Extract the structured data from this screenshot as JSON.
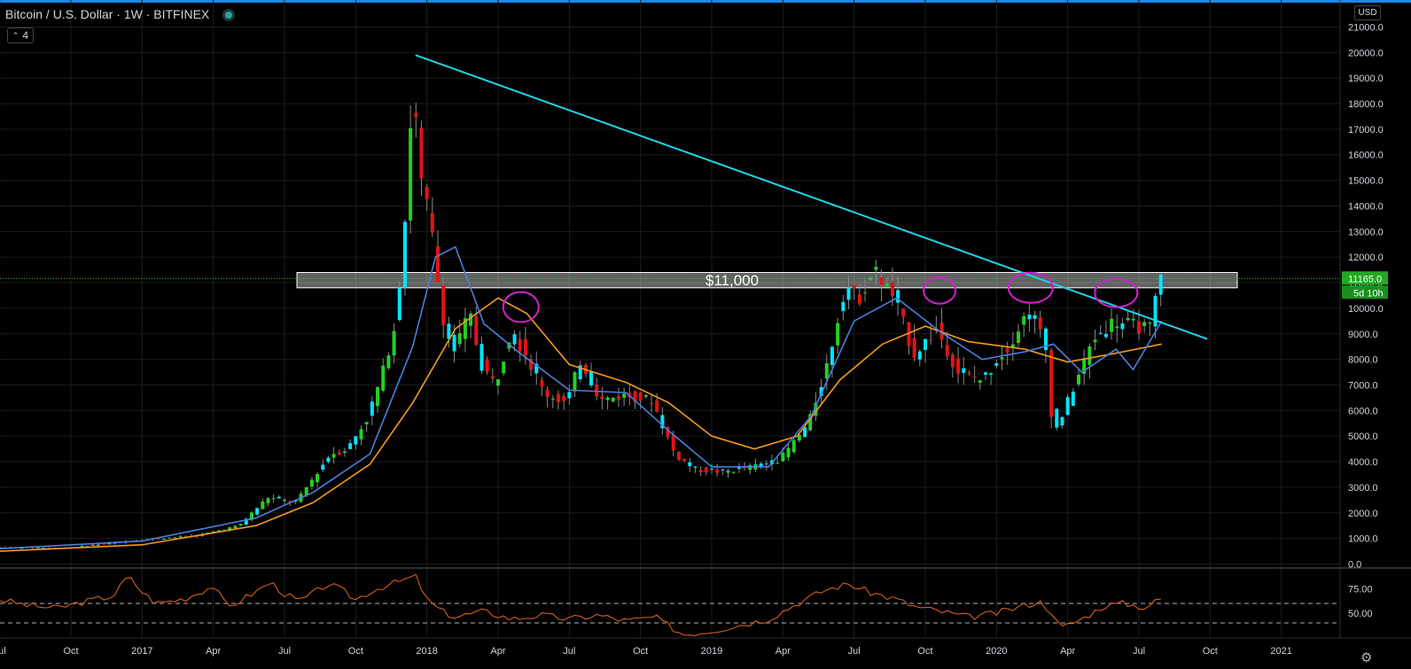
{
  "header": {
    "title": "Bitcoin / U.S. Dollar · 1W · BITFINEX",
    "indicators_label": "4",
    "currency": "USD",
    "price_tag": "11165.0",
    "countdown": "5d 10h"
  },
  "annotation": {
    "zone_label": "$11,000"
  },
  "colors": {
    "up": "#22d122",
    "down": "#e21414",
    "up_hollow": "#00e5ff",
    "ma_fast": "#4a7fe0",
    "ma_slow": "#f59a1f",
    "trendline": "#22d3e6",
    "circle": "#d020d0",
    "rsi": "#e8661e",
    "grid": "#1c1c1c"
  },
  "chart_data": [
    {
      "type": "candlestick",
      "timeframe": "1W",
      "y_ticks": [
        "21000.0",
        "20000.0",
        "19000.0",
        "18000.0",
        "17000.0",
        "16000.0",
        "15000.0",
        "14000.0",
        "13000.0",
        "12000.0",
        "11000.0",
        "10000.0",
        "9000.0",
        "8000.0",
        "7000.0",
        "6000.0",
        "5000.0",
        "4000.0",
        "3000.0",
        "2000.0",
        "1000.0",
        "0.0"
      ],
      "ylim": [
        0,
        21000
      ],
      "x_ticks": [
        "Jul",
        "Oct",
        "2017",
        "Apr",
        "Jul",
        "Oct",
        "2018",
        "Apr",
        "Jul",
        "Oct",
        "2019",
        "Apr",
        "Jul",
        "Oct",
        "2020",
        "Apr",
        "Jul",
        "Oct",
        "2021"
      ],
      "x_tick_months": [
        2016.5,
        2016.75,
        2017,
        2017.25,
        2017.5,
        2017.75,
        2018,
        2018.25,
        2018.5,
        2018.75,
        2019,
        2019.25,
        2019.5,
        2019.75,
        2020,
        2020.25,
        2020.5,
        2020.75,
        2021
      ],
      "price_path": [
        [
          2016.5,
          650
        ],
        [
          2016.75,
          630
        ],
        [
          2017.0,
          950
        ],
        [
          2017.2,
          1100
        ],
        [
          2017.35,
          1500
        ],
        [
          2017.45,
          2600
        ],
        [
          2017.55,
          2400
        ],
        [
          2017.6,
          3200
        ],
        [
          2017.67,
          4300
        ],
        [
          2017.73,
          4500
        ],
        [
          2017.8,
          5700
        ],
        [
          2017.85,
          7300
        ],
        [
          2017.9,
          9500
        ],
        [
          2017.93,
          13000
        ],
        [
          2017.96,
          18800
        ],
        [
          2017.99,
          14800
        ],
        [
          2018.02,
          13500
        ],
        [
          2018.06,
          10000
        ],
        [
          2018.1,
          8200
        ],
        [
          2018.16,
          9800
        ],
        [
          2018.2,
          7800
        ],
        [
          2018.25,
          7000
        ],
        [
          2018.3,
          9000
        ],
        [
          2018.35,
          8400
        ],
        [
          2018.42,
          6700
        ],
        [
          2018.5,
          6300
        ],
        [
          2018.55,
          8000
        ],
        [
          2018.62,
          6400
        ],
        [
          2018.7,
          6600
        ],
        [
          2018.8,
          6400
        ],
        [
          2018.88,
          4300
        ],
        [
          2018.95,
          3700
        ],
        [
          2019.05,
          3600
        ],
        [
          2019.15,
          3800
        ],
        [
          2019.25,
          4100
        ],
        [
          2019.35,
          5500
        ],
        [
          2019.42,
          8000
        ],
        [
          2019.48,
          11000
        ],
        [
          2019.52,
          10300
        ],
        [
          2019.58,
          11500
        ],
        [
          2019.65,
          10400
        ],
        [
          2019.72,
          8200
        ],
        [
          2019.8,
          9200
        ],
        [
          2019.88,
          7400
        ],
        [
          2019.96,
          7200
        ],
        [
          2020.05,
          8500
        ],
        [
          2020.12,
          9900
        ],
        [
          2020.18,
          8700
        ],
        [
          2020.21,
          5000
        ],
        [
          2020.28,
          6900
        ],
        [
          2020.35,
          8800
        ],
        [
          2020.42,
          9500
        ],
        [
          2020.5,
          9300
        ],
        [
          2020.55,
          9200
        ],
        [
          2020.58,
          11165
        ]
      ],
      "ma_fast_path": [
        [
          2016.5,
          600
        ],
        [
          2017.0,
          900
        ],
        [
          2017.4,
          1800
        ],
        [
          2017.6,
          2800
        ],
        [
          2017.8,
          4300
        ],
        [
          2017.95,
          8500
        ],
        [
          2018.03,
          12000
        ],
        [
          2018.1,
          12400
        ],
        [
          2018.2,
          9400
        ],
        [
          2018.32,
          8300
        ],
        [
          2018.5,
          6800
        ],
        [
          2018.7,
          6700
        ],
        [
          2018.85,
          5200
        ],
        [
          2019.0,
          3800
        ],
        [
          2019.2,
          3800
        ],
        [
          2019.35,
          5800
        ],
        [
          2019.5,
          9500
        ],
        [
          2019.65,
          10400
        ],
        [
          2019.8,
          9100
        ],
        [
          2019.95,
          8000
        ],
        [
          2020.1,
          8300
        ],
        [
          2020.2,
          8600
        ],
        [
          2020.3,
          7500
        ],
        [
          2020.42,
          8400
        ],
        [
          2020.48,
          7600
        ],
        [
          2020.58,
          9500
        ]
      ],
      "ma_slow_path": [
        [
          2016.5,
          500
        ],
        [
          2017.0,
          750
        ],
        [
          2017.4,
          1500
        ],
        [
          2017.6,
          2400
        ],
        [
          2017.8,
          3900
        ],
        [
          2017.95,
          6300
        ],
        [
          2018.1,
          9200
        ],
        [
          2018.25,
          10400
        ],
        [
          2018.35,
          9800
        ],
        [
          2018.5,
          7800
        ],
        [
          2018.7,
          7100
        ],
        [
          2018.85,
          6300
        ],
        [
          2019.0,
          5000
        ],
        [
          2019.15,
          4500
        ],
        [
          2019.3,
          5000
        ],
        [
          2019.45,
          7200
        ],
        [
          2019.6,
          8600
        ],
        [
          2019.75,
          9300
        ],
        [
          2019.9,
          8700
        ],
        [
          2020.1,
          8400
        ],
        [
          2020.25,
          7900
        ],
        [
          2020.4,
          8200
        ],
        [
          2020.58,
          8600
        ]
      ],
      "trendline": [
        [
          2017.96,
          19900
        ],
        [
          2020.74,
          8800
        ]
      ],
      "zone": [
        10800,
        11400
      ],
      "last_price": 11165.0
    },
    {
      "type": "line",
      "series_name": "RSI",
      "y_ticks": [
        "75.00",
        "50.00"
      ],
      "ylim": [
        25,
        100
      ],
      "bands": [
        60,
        40
      ],
      "values": [
        [
          2016.5,
          64
        ],
        [
          2016.6,
          58
        ],
        [
          2016.7,
          55
        ],
        [
          2016.8,
          62
        ],
        [
          2016.9,
          68
        ],
        [
          2016.95,
          88
        ],
        [
          2017.0,
          72
        ],
        [
          2017.05,
          60
        ],
        [
          2017.15,
          65
        ],
        [
          2017.25,
          78
        ],
        [
          2017.3,
          56
        ],
        [
          2017.4,
          72
        ],
        [
          2017.45,
          82
        ],
        [
          2017.5,
          70
        ],
        [
          2017.55,
          62
        ],
        [
          2017.6,
          70
        ],
        [
          2017.65,
          80
        ],
        [
          2017.7,
          74
        ],
        [
          2017.75,
          64
        ],
        [
          2017.8,
          72
        ],
        [
          2017.85,
          78
        ],
        [
          2017.9,
          82
        ],
        [
          2017.96,
          88
        ],
        [
          2018.0,
          64
        ],
        [
          2018.05,
          52
        ],
        [
          2018.1,
          46
        ],
        [
          2018.2,
          52
        ],
        [
          2018.3,
          44
        ],
        [
          2018.4,
          48
        ],
        [
          2018.5,
          44
        ],
        [
          2018.6,
          48
        ],
        [
          2018.7,
          42
        ],
        [
          2018.8,
          46
        ],
        [
          2018.9,
          28
        ],
        [
          2019.0,
          32
        ],
        [
          2019.1,
          38
        ],
        [
          2019.2,
          44
        ],
        [
          2019.3,
          60
        ],
        [
          2019.4,
          74
        ],
        [
          2019.48,
          80
        ],
        [
          2019.55,
          72
        ],
        [
          2019.65,
          64
        ],
        [
          2019.72,
          56
        ],
        [
          2019.8,
          52
        ],
        [
          2019.9,
          46
        ],
        [
          2020.0,
          50
        ],
        [
          2020.1,
          58
        ],
        [
          2020.15,
          62
        ],
        [
          2020.2,
          50
        ],
        [
          2020.22,
          34
        ],
        [
          2020.3,
          44
        ],
        [
          2020.38,
          58
        ],
        [
          2020.45,
          60
        ],
        [
          2020.52,
          56
        ],
        [
          2020.58,
          65
        ]
      ]
    }
  ]
}
